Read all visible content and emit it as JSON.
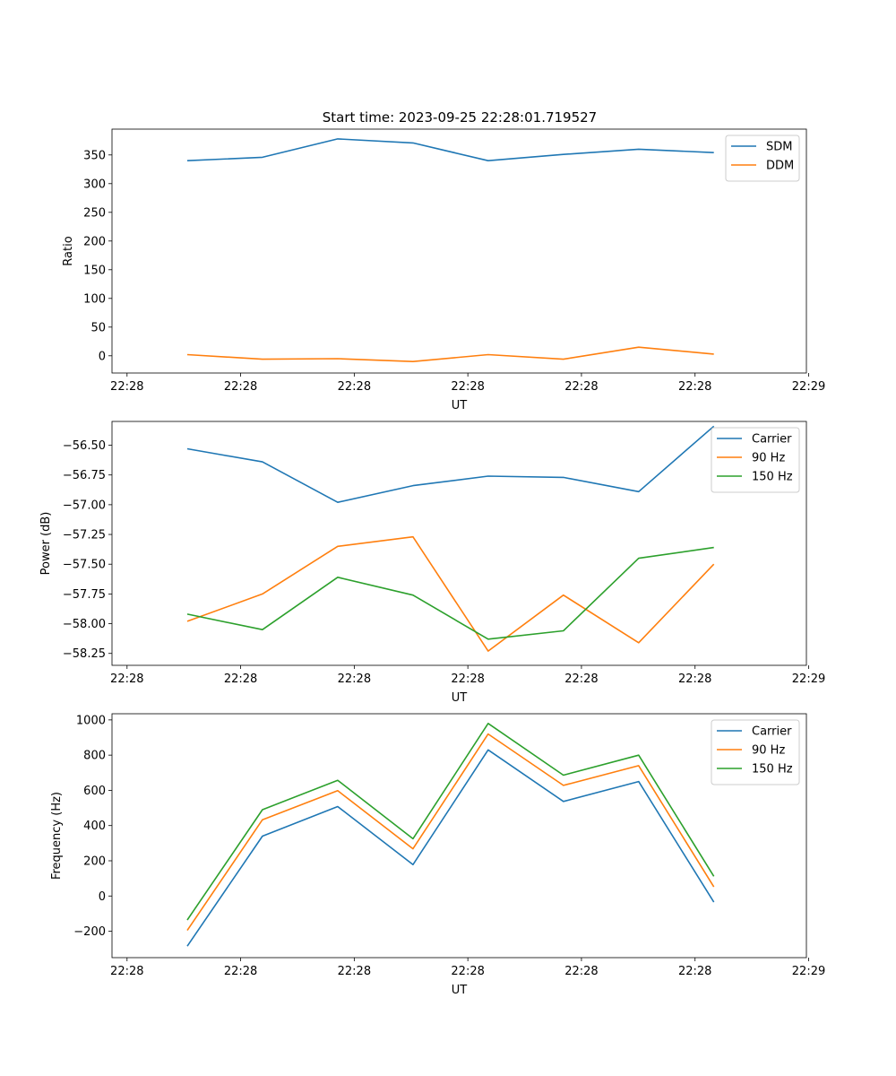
{
  "figure_title": "Start time: 2023-09-25 22:28:01.719527",
  "chart_data": [
    {
      "type": "line",
      "title": "Start time: 2023-09-25 22:28:01.719527",
      "xlabel": "UT",
      "ylabel": "Ratio",
      "xlim": [
        0,
        9.23
      ],
      "ylim": [
        -30,
        395
      ],
      "x": [
        1,
        2,
        3,
        4,
        5,
        6,
        7,
        8
      ],
      "xticks": [
        0.2,
        1.71,
        3.22,
        4.73,
        6.24,
        7.75,
        9.26
      ],
      "xtick_labels": [
        "22:28",
        "22:28",
        "22:28",
        "22:28",
        "22:28",
        "22:28",
        "22:29"
      ],
      "yticks": [
        0,
        50,
        100,
        150,
        200,
        250,
        300,
        350
      ],
      "ytick_labels": [
        "0",
        "50",
        "100",
        "150",
        "200",
        "250",
        "300",
        "350"
      ],
      "legend_position": "top-right",
      "series": [
        {
          "name": "SDM",
          "color": "#1f77b4",
          "values": [
            340,
            346,
            378,
            371,
            340,
            351,
            360,
            354
          ]
        },
        {
          "name": "DDM",
          "color": "#ff7f0e",
          "values": [
            2,
            -6,
            -5,
            -10,
            2,
            -6,
            15,
            3
          ]
        }
      ]
    },
    {
      "type": "line",
      "title": "",
      "xlabel": "UT",
      "ylabel": "Power (dB)",
      "xlim": [
        0,
        9.23
      ],
      "ylim": [
        -58.35,
        -56.3
      ],
      "x": [
        1,
        2,
        3,
        4,
        5,
        6,
        7,
        8
      ],
      "xticks": [
        0.2,
        1.71,
        3.22,
        4.73,
        6.24,
        7.75,
        9.26
      ],
      "xtick_labels": [
        "22:28",
        "22:28",
        "22:28",
        "22:28",
        "22:28",
        "22:28",
        "22:29"
      ],
      "yticks": [
        -58.25,
        -58.0,
        -57.75,
        -57.5,
        -57.25,
        -57.0,
        -56.75,
        -56.5
      ],
      "ytick_labels": [
        "−58.25",
        "−58.00",
        "−57.75",
        "−57.50",
        "−57.25",
        "−57.00",
        "−56.75",
        "−56.50"
      ],
      "legend_position": "top-right",
      "series": [
        {
          "name": "Carrier",
          "color": "#1f77b4",
          "values": [
            -56.53,
            -56.64,
            -56.98,
            -56.84,
            -56.76,
            -56.77,
            -56.89,
            -56.34
          ]
        },
        {
          "name": "90 Hz",
          "color": "#ff7f0e",
          "values": [
            -57.98,
            -57.75,
            -57.35,
            -57.27,
            -58.23,
            -57.76,
            -58.16,
            -57.5
          ]
        },
        {
          "name": "150 Hz",
          "color": "#2ca02c",
          "values": [
            -57.92,
            -58.05,
            -57.61,
            -57.76,
            -58.13,
            -58.06,
            -57.45,
            -57.36
          ]
        }
      ]
    },
    {
      "type": "line",
      "title": "",
      "xlabel": "UT",
      "ylabel": "Frequency (Hz)",
      "xlim": [
        0,
        9.23
      ],
      "ylim": [
        -350,
        1035
      ],
      "x": [
        1,
        2,
        3,
        4,
        5,
        6,
        7,
        8
      ],
      "xticks": [
        0.2,
        1.71,
        3.22,
        4.73,
        6.24,
        7.75,
        9.26
      ],
      "xtick_labels": [
        "22:28",
        "22:28",
        "22:28",
        "22:28",
        "22:28",
        "22:28",
        "22:29"
      ],
      "yticks": [
        -200,
        0,
        200,
        400,
        600,
        800,
        1000
      ],
      "ytick_labels": [
        "−200",
        "0",
        "200",
        "400",
        "600",
        "800",
        "1000"
      ],
      "legend_position": "top-right",
      "series": [
        {
          "name": "Carrier",
          "color": "#1f77b4",
          "values": [
            -285,
            340,
            508,
            178,
            830,
            537,
            650,
            -35
          ]
        },
        {
          "name": "90 Hz",
          "color": "#ff7f0e",
          "values": [
            -195,
            433,
            598,
            268,
            920,
            628,
            740,
            52
          ]
        },
        {
          "name": "150 Hz",
          "color": "#2ca02c",
          "values": [
            -136,
            490,
            657,
            325,
            980,
            686,
            800,
            112
          ]
        }
      ]
    }
  ]
}
